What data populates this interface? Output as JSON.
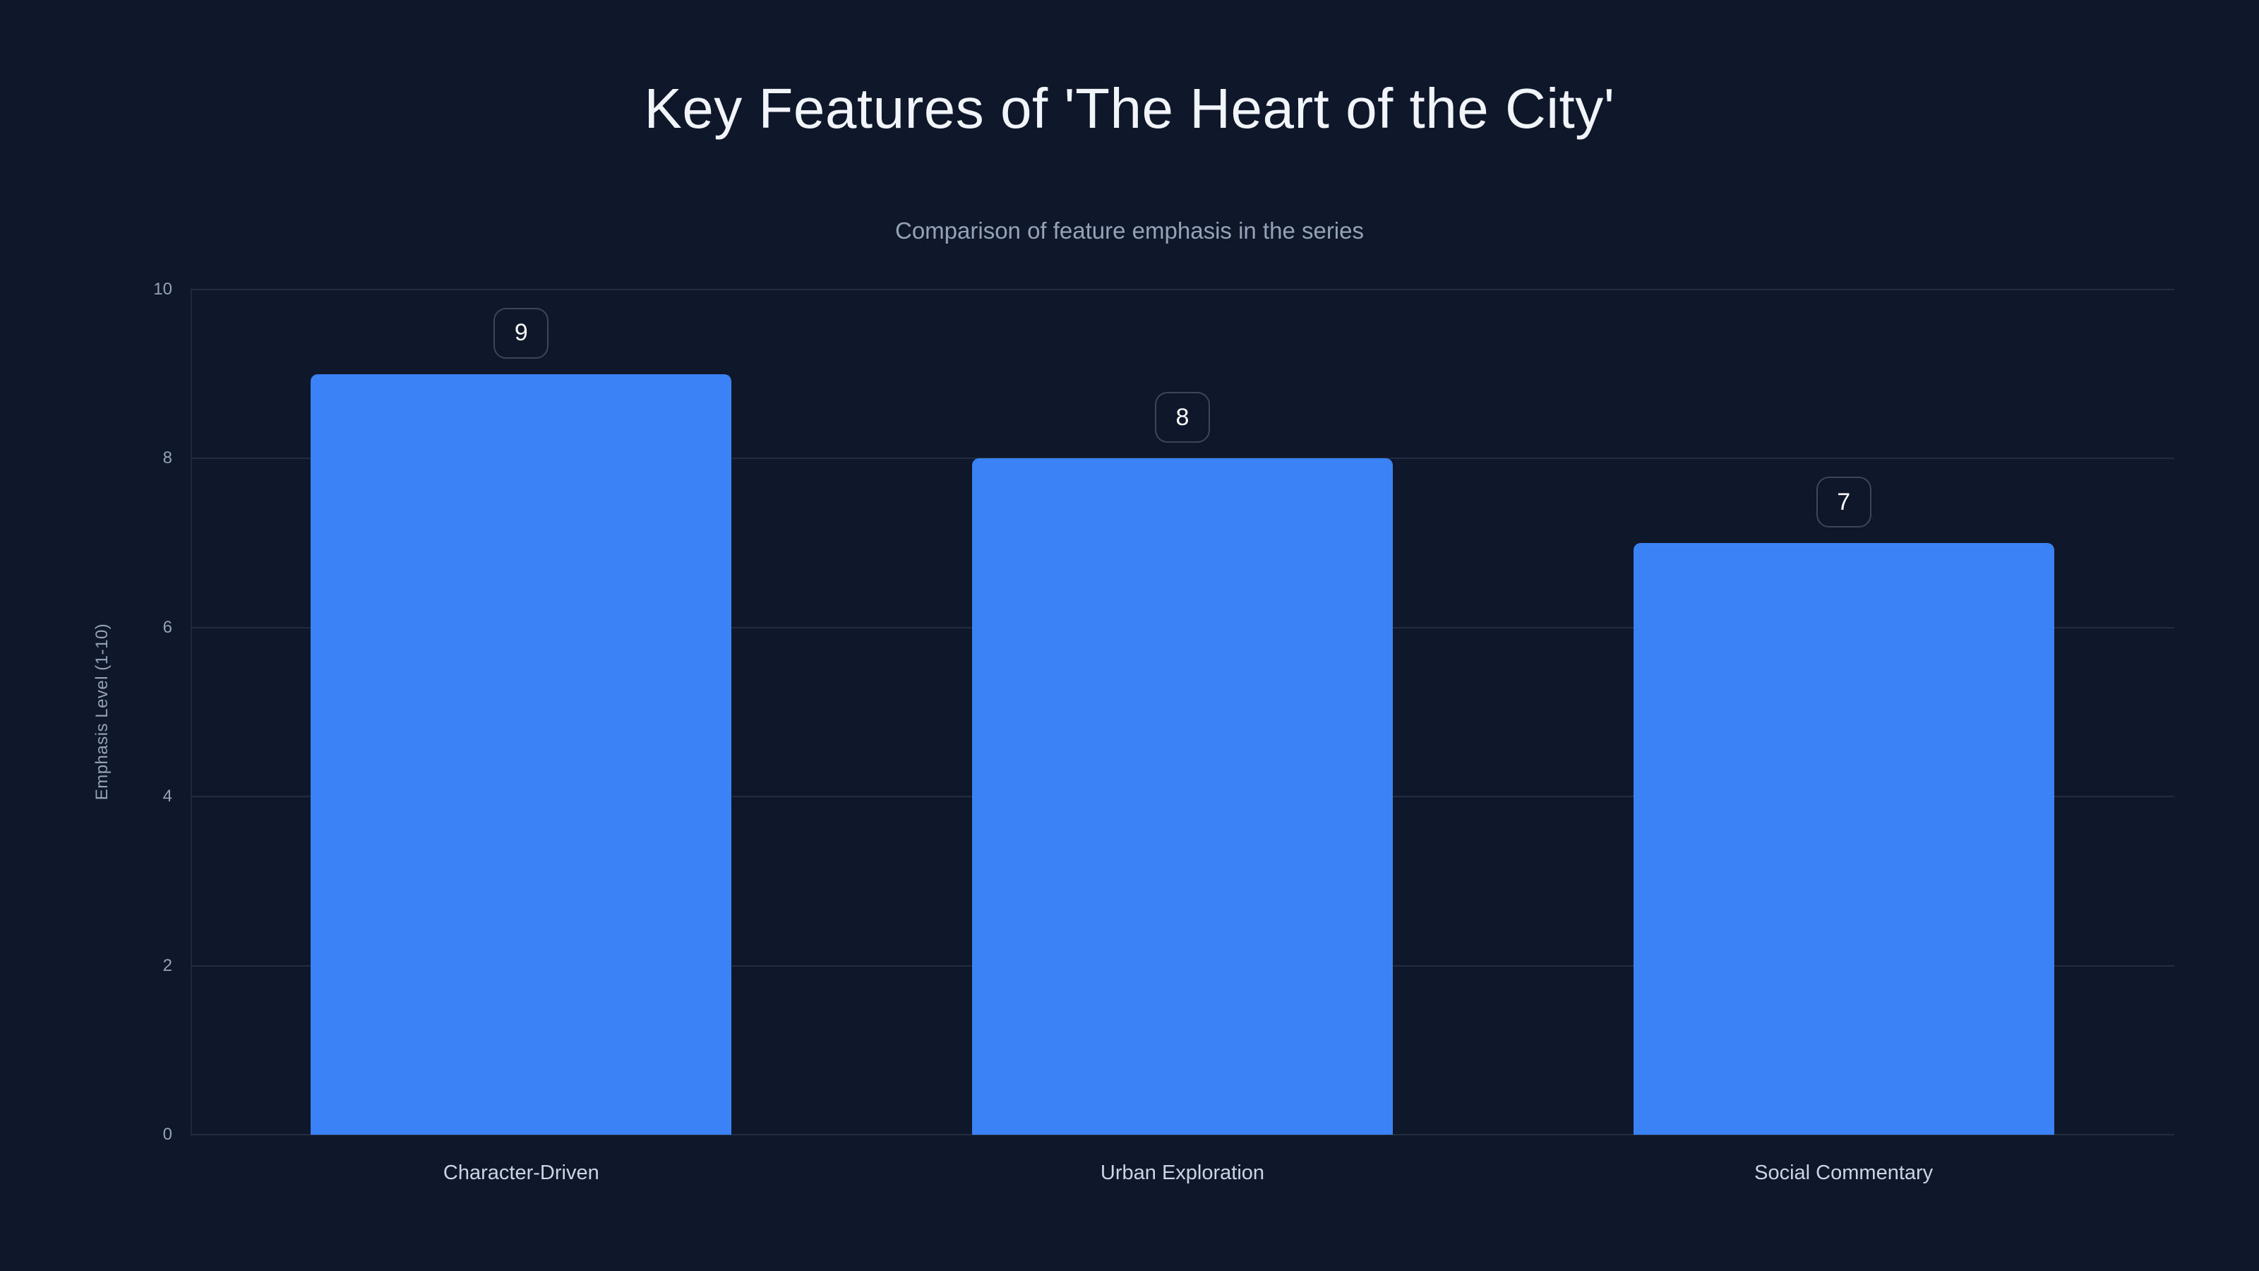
{
  "chart_data": {
    "type": "bar",
    "title": "Key Features of 'The Heart of the City'",
    "subtitle": "Comparison of feature emphasis in the series",
    "categories": [
      "Character-Driven",
      "Urban Exploration",
      "Social Commentary"
    ],
    "values": [
      9,
      8,
      7
    ],
    "value_labels": [
      "9",
      "8",
      "7"
    ],
    "xlabel": "",
    "ylabel": "Emphasis Level (1-10)",
    "ylim": [
      0,
      10
    ],
    "yticks": [
      0,
      2,
      4,
      6,
      8,
      10
    ],
    "grid": "horizontal-only",
    "legend": "none",
    "colors": {
      "background": "#0f172a",
      "bar": "#3b82f6",
      "title": "#f1f5f9",
      "subtitle": "#94a3b8",
      "tick_label": "#94a3b8",
      "category_label": "#cbd5e1",
      "gridline": "#232d40",
      "badge_border": "#3d4759",
      "badge_text": "#f8fafc"
    }
  }
}
